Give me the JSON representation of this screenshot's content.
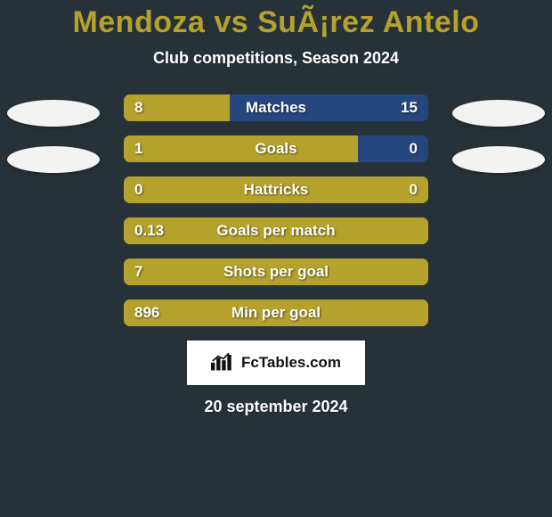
{
  "colors": {
    "background": "#273238",
    "title": "#b5a22c",
    "text": "#ffffff",
    "avatar": "#f3f3f1",
    "bar_left": "#b5a22c",
    "bar_right": "#26477e",
    "bar_row_bg": "#2f3a40"
  },
  "typography": {
    "title_fontsize": 34,
    "subtitle_fontsize": 18,
    "bar_label_fontsize": 17,
    "date_fontsize": 18
  },
  "header": {
    "title": "Mendoza vs SuÃ¡rez Antelo",
    "subtitle": "Club competitions, Season 2024",
    "date": "20 september 2024"
  },
  "logo": {
    "text": "FcTables.com"
  },
  "stats": [
    {
      "label": "Matches",
      "left_val": "8",
      "right_val": "15",
      "left_pct": 34.8,
      "right_pct": 65.2
    },
    {
      "label": "Goals",
      "left_val": "1",
      "right_val": "0",
      "left_pct": 77,
      "right_pct": 23
    },
    {
      "label": "Hattricks",
      "left_val": "0",
      "right_val": "0",
      "left_pct": 100,
      "right_pct": 0
    },
    {
      "label": "Goals per match",
      "left_val": "0.13",
      "right_val": "",
      "left_pct": 100,
      "right_pct": 0
    },
    {
      "label": "Shots per goal",
      "left_val": "7",
      "right_val": "",
      "left_pct": 100,
      "right_pct": 0
    },
    {
      "label": "Min per goal",
      "left_val": "896",
      "right_val": "",
      "left_pct": 100,
      "right_pct": 0
    }
  ]
}
